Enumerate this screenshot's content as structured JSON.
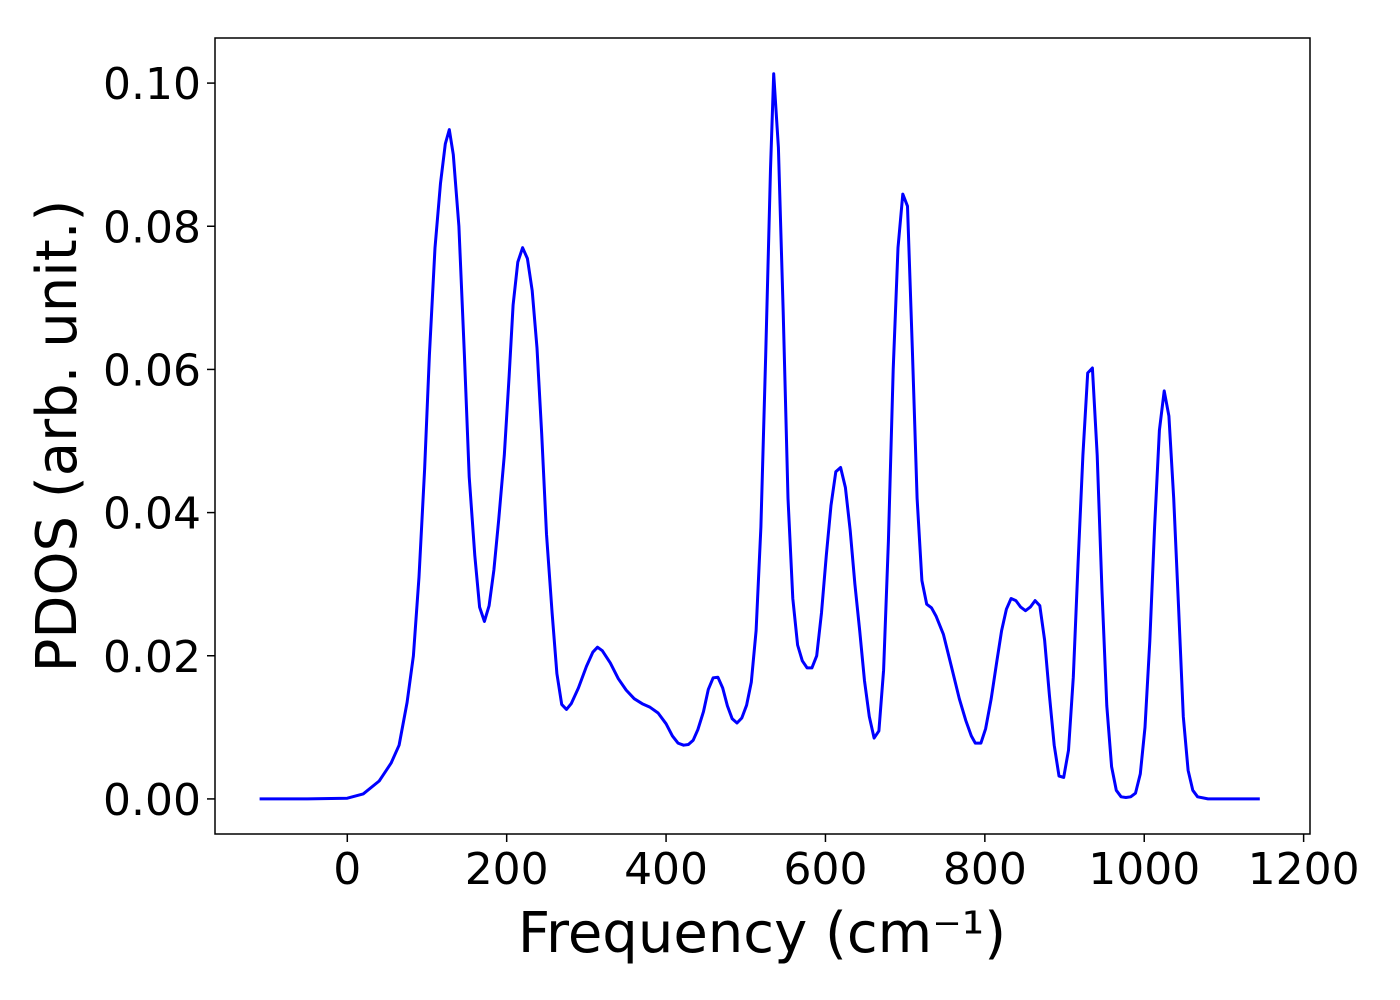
{
  "chart_data": {
    "type": "line",
    "x_label": "Frequency (cm⁻¹)",
    "y_label": "PDOS (arb. unit.)",
    "color": "#0000ff",
    "xlim": [
      -166,
      1208
    ],
    "ylim": [
      -0.0049,
      0.1063
    ],
    "xticks": [
      0,
      200,
      400,
      600,
      800,
      1000,
      1200
    ],
    "yticks": [
      {
        "value": 0,
        "label": "0.00"
      },
      {
        "value": 0.02,
        "label": "0.02"
      },
      {
        "value": 0.04,
        "label": "0.04"
      },
      {
        "value": 0.06,
        "label": "0.06"
      },
      {
        "value": 0.08,
        "label": "0.08"
      },
      {
        "value": 0.1,
        "label": "0.10"
      }
    ],
    "x": [
      -110,
      -50,
      0,
      20,
      40,
      55,
      65,
      75,
      83,
      90,
      97,
      103,
      110,
      117,
      123,
      128,
      133,
      140,
      147,
      153,
      160,
      166,
      172,
      178,
      184,
      190,
      197,
      203,
      208,
      214,
      220,
      226,
      232,
      238,
      244,
      250,
      257,
      263,
      269,
      275,
      281,
      290,
      300,
      308,
      314,
      320,
      330,
      340,
      350,
      360,
      370,
      380,
      390,
      400,
      408,
      415,
      422,
      428,
      434,
      440,
      447,
      453,
      459,
      465,
      471,
      477,
      483,
      489,
      495,
      501,
      507,
      513,
      519,
      525,
      531,
      535,
      541,
      547,
      553,
      559,
      565,
      571,
      577,
      583,
      589,
      595,
      601,
      607,
      613,
      619,
      625,
      631,
      637,
      643,
      649,
      655,
      661,
      667,
      673,
      679,
      685,
      691,
      697,
      703,
      709,
      715,
      721,
      727,
      733,
      739,
      748,
      758,
      768,
      776,
      783,
      788,
      795,
      801,
      808,
      815,
      821,
      827,
      833,
      839,
      845,
      851,
      857,
      863,
      869,
      875,
      881,
      887,
      893,
      899,
      905,
      911,
      917,
      923,
      929,
      935,
      941,
      947,
      953,
      959,
      965,
      971,
      977,
      983,
      989,
      995,
      1001,
      1007,
      1013,
      1019,
      1025,
      1031,
      1037,
      1043,
      1049,
      1055,
      1061,
      1067,
      1080,
      1145
    ],
    "values": [
      0,
      0,
      0.0001,
      0.0007,
      0.0025,
      0.005,
      0.0075,
      0.0135,
      0.02,
      0.031,
      0.046,
      0.062,
      0.077,
      0.086,
      0.0915,
      0.0935,
      0.09,
      0.08,
      0.062,
      0.045,
      0.034,
      0.0268,
      0.0248,
      0.027,
      0.032,
      0.039,
      0.048,
      0.059,
      0.069,
      0.075,
      0.077,
      0.0755,
      0.071,
      0.063,
      0.051,
      0.037,
      0.026,
      0.0175,
      0.0132,
      0.0125,
      0.0133,
      0.0155,
      0.0185,
      0.0205,
      0.0212,
      0.0207,
      0.019,
      0.0168,
      0.0152,
      0.014,
      0.0133,
      0.0128,
      0.012,
      0.0105,
      0.0088,
      0.0078,
      0.0075,
      0.0076,
      0.0082,
      0.0097,
      0.0122,
      0.0153,
      0.0169,
      0.017,
      0.0155,
      0.013,
      0.0112,
      0.0106,
      0.0113,
      0.0131,
      0.0163,
      0.0235,
      0.038,
      0.062,
      0.088,
      0.1013,
      0.091,
      0.068,
      0.042,
      0.028,
      0.0215,
      0.0193,
      0.0183,
      0.0183,
      0.02,
      0.026,
      0.034,
      0.041,
      0.0457,
      0.0463,
      0.0435,
      0.0375,
      0.03,
      0.0235,
      0.0165,
      0.0115,
      0.0085,
      0.0095,
      0.018,
      0.036,
      0.06,
      0.077,
      0.0845,
      0.0828,
      0.063,
      0.042,
      0.0305,
      0.0272,
      0.0267,
      0.0255,
      0.023,
      0.0185,
      0.014,
      0.011,
      0.0088,
      0.0078,
      0.0078,
      0.0098,
      0.014,
      0.0192,
      0.0235,
      0.0265,
      0.028,
      0.0277,
      0.0268,
      0.0263,
      0.0268,
      0.0277,
      0.027,
      0.0222,
      0.0145,
      0.0075,
      0.0032,
      0.003,
      0.0068,
      0.017,
      0.033,
      0.048,
      0.0595,
      0.0602,
      0.048,
      0.029,
      0.013,
      0.0045,
      0.0012,
      0.0003,
      0.0002,
      0.0003,
      0.0008,
      0.0035,
      0.01,
      0.022,
      0.038,
      0.0515,
      0.057,
      0.0535,
      0.042,
      0.027,
      0.0115,
      0.004,
      0.0012,
      0.0003,
      0,
      0
    ]
  }
}
